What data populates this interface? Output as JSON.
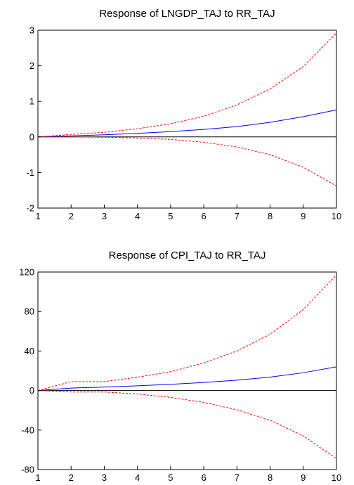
{
  "chart_data": [
    {
      "type": "line",
      "title": "Response of LNGDP_TAJ to RR_TAJ",
      "xlabel": "",
      "ylabel": "",
      "x": [
        1,
        2,
        3,
        4,
        5,
        6,
        7,
        8,
        9,
        10
      ],
      "xlim": [
        1,
        10
      ],
      "ylim": [
        -2,
        3
      ],
      "yticks": [
        3,
        2,
        1,
        0,
        -1,
        -2
      ],
      "ytick_labels": [
        "3",
        "2",
        "1",
        "0",
        "-1",
        "-2"
      ],
      "xtick_labels": [
        "1",
        "2",
        "3",
        "4",
        "5",
        "6",
        "7",
        "8",
        "9",
        "10"
      ],
      "zero_line": true,
      "series": [
        {
          "role": "response",
          "color": "#0000ff",
          "style": "solid",
          "values": [
            0.0,
            0.03,
            0.06,
            0.1,
            0.15,
            0.21,
            0.29,
            0.41,
            0.57,
            0.76
          ]
        },
        {
          "role": "upper",
          "color": "#ff0000",
          "style": "dashed",
          "values": [
            0.0,
            0.07,
            0.13,
            0.23,
            0.37,
            0.58,
            0.9,
            1.35,
            1.98,
            2.92
          ]
        },
        {
          "role": "lower",
          "color": "#ff0000",
          "style": "dashed",
          "values": [
            0.0,
            0.0,
            -0.01,
            -0.03,
            -0.07,
            -0.15,
            -0.28,
            -0.5,
            -0.85,
            -1.38
          ]
        }
      ]
    },
    {
      "type": "line",
      "title": "Response of CPI_TAJ to RR_TAJ",
      "xlabel": "",
      "ylabel": "",
      "x": [
        1,
        2,
        3,
        4,
        5,
        6,
        7,
        8,
        9,
        10
      ],
      "xlim": [
        1,
        10
      ],
      "ylim": [
        -80,
        120
      ],
      "yticks": [
        120,
        80,
        40,
        0,
        -40,
        -80
      ],
      "ytick_labels": [
        "120",
        "80",
        "40",
        "0",
        "-40",
        "-80"
      ],
      "xtick_labels": [
        "1",
        "2",
        "3",
        "4",
        "5",
        "6",
        "7",
        "8",
        "9",
        "10"
      ],
      "zero_line": true,
      "series": [
        {
          "role": "response",
          "color": "#0000ff",
          "style": "solid",
          "values": [
            0.0,
            2.5,
            3.5,
            4.8,
            6.3,
            8.2,
            10.5,
            13.6,
            18.0,
            24.0
          ]
        },
        {
          "role": "upper",
          "color": "#ff0000",
          "style": "dashed",
          "values": [
            0.0,
            9.0,
            9.0,
            13.5,
            19.0,
            28.0,
            40.0,
            57.0,
            82.0,
            117.0
          ]
        },
        {
          "role": "lower",
          "color": "#ff0000",
          "style": "dashed",
          "values": [
            0.0,
            -1.5,
            -1.5,
            -3.5,
            -7.0,
            -12.0,
            -19.5,
            -30.0,
            -46.0,
            -69.0
          ]
        }
      ]
    }
  ]
}
